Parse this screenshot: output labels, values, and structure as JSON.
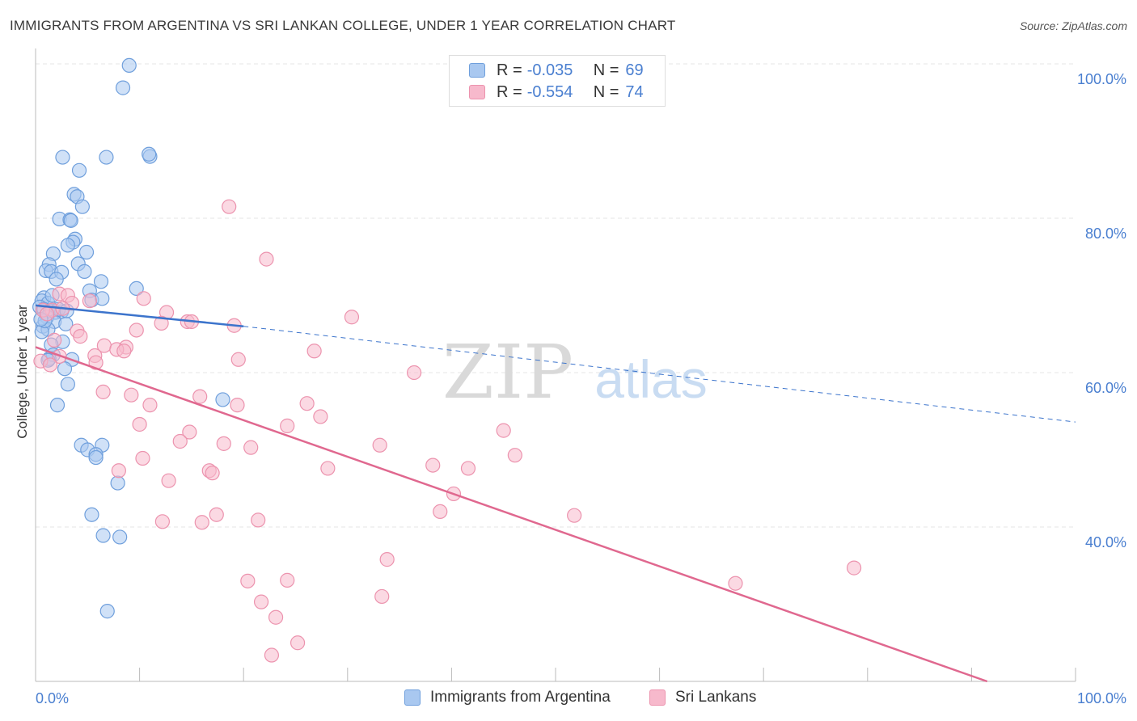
{
  "title": "IMMIGRANTS FROM ARGENTINA VS SRI LANKAN COLLEGE, UNDER 1 YEAR CORRELATION CHART",
  "source": "Source: ZipAtlas.com",
  "watermark": {
    "zip": "ZIP",
    "atlas": "atlas"
  },
  "colors": {
    "blue_fill": "#a9c8f0",
    "blue_stroke": "#6f9fdc",
    "blue_line": "#3c74cc",
    "pink_fill": "#f7b9cc",
    "pink_stroke": "#ec93ae",
    "pink_line": "#e0688f",
    "axis_label": "#4a7fd0",
    "grid": "#e6e6e6"
  },
  "legend": {
    "rows": [
      {
        "r_label": "R =",
        "r_value": "-0.035",
        "n_label": "N =",
        "n_value": "69"
      },
      {
        "r_label": "R =",
        "r_value": "-0.554",
        "n_label": "N =",
        "n_value": "74"
      }
    ],
    "bottom": [
      "Immigrants from Argentina",
      "Sri Lankans"
    ]
  },
  "chart_data": {
    "type": "scatter",
    "title": "IMMIGRANTS FROM ARGENTINA VS SRI LANKAN COLLEGE, UNDER 1 YEAR CORRELATION CHART",
    "xlabel": "",
    "ylabel": "College, Under 1 year",
    "xlim": [
      0,
      100
    ],
    "ylim": [
      20,
      102
    ],
    "x_tick_labels": [
      "0.0%",
      "100.0%"
    ],
    "y_ticks": [
      40,
      60,
      80,
      100
    ],
    "y_tick_labels": [
      "40.0%",
      "60.0%",
      "80.0%",
      "100.0%"
    ],
    "series": [
      {
        "name": "Immigrants from Argentina",
        "r": -0.035,
        "n": 69,
        "trend": {
          "x0": 0,
          "y0": 68.7,
          "x_solid_end": 20,
          "y_solid_end": 66.0,
          "x1": 100,
          "y1": 53.6
        },
        "points": [
          [
            9.0,
            99.8
          ],
          [
            8.4,
            96.9
          ],
          [
            2.6,
            87.9
          ],
          [
            6.8,
            87.9
          ],
          [
            11.0,
            88.0
          ],
          [
            10.9,
            88.3
          ],
          [
            4.2,
            86.2
          ],
          [
            3.7,
            83.1
          ],
          [
            4.0,
            82.8
          ],
          [
            4.5,
            81.5
          ],
          [
            2.3,
            79.9
          ],
          [
            3.3,
            79.8
          ],
          [
            3.4,
            79.7
          ],
          [
            3.8,
            77.3
          ],
          [
            3.6,
            76.9
          ],
          [
            3.1,
            76.5
          ],
          [
            1.7,
            75.4
          ],
          [
            4.9,
            75.6
          ],
          [
            4.1,
            74.1
          ],
          [
            1.3,
            74.0
          ],
          [
            1.0,
            73.2
          ],
          [
            1.5,
            73.1
          ],
          [
            2.5,
            73.0
          ],
          [
            4.7,
            73.1
          ],
          [
            2.0,
            72.1
          ],
          [
            6.3,
            71.8
          ],
          [
            9.7,
            70.9
          ],
          [
            5.2,
            70.6
          ],
          [
            0.8,
            69.7
          ],
          [
            0.6,
            69.3
          ],
          [
            1.2,
            69.0
          ],
          [
            5.4,
            69.4
          ],
          [
            6.4,
            69.6
          ],
          [
            0.4,
            68.5
          ],
          [
            0.8,
            68.2
          ],
          [
            1.4,
            68.0
          ],
          [
            1.9,
            67.8
          ],
          [
            2.5,
            67.9
          ],
          [
            1.1,
            67.2
          ],
          [
            1.8,
            66.6
          ],
          [
            2.9,
            66.3
          ],
          [
            0.7,
            66.0
          ],
          [
            1.2,
            65.6
          ],
          [
            0.6,
            65.3
          ],
          [
            2.6,
            64.0
          ],
          [
            1.5,
            63.6
          ],
          [
            1.7,
            62.3
          ],
          [
            1.3,
            61.8
          ],
          [
            3.5,
            61.7
          ],
          [
            1.2,
            61.6
          ],
          [
            2.8,
            60.5
          ],
          [
            3.1,
            58.5
          ],
          [
            2.1,
            55.8
          ],
          [
            18.0,
            56.5
          ],
          [
            4.4,
            50.6
          ],
          [
            6.4,
            50.6
          ],
          [
            5.0,
            50.0
          ],
          [
            5.8,
            49.4
          ],
          [
            5.8,
            49.0
          ],
          [
            7.9,
            45.7
          ],
          [
            5.4,
            41.6
          ],
          [
            6.5,
            38.9
          ],
          [
            8.1,
            38.7
          ],
          [
            6.9,
            29.1
          ],
          [
            2.2,
            68.2
          ],
          [
            0.9,
            66.7
          ],
          [
            1.6,
            70.0
          ],
          [
            3.0,
            68.0
          ],
          [
            0.5,
            66.9
          ]
        ]
      },
      {
        "name": "Sri Lankans",
        "r": -0.554,
        "n": 74,
        "trend": {
          "x0": 0,
          "y0": 63.3,
          "x1": 91.5,
          "y1": 20.0
        },
        "points": [
          [
            18.6,
            81.5
          ],
          [
            22.2,
            74.7
          ],
          [
            2.3,
            70.2
          ],
          [
            3.1,
            70.0
          ],
          [
            5.2,
            69.3
          ],
          [
            10.4,
            69.6
          ],
          [
            3.5,
            69.0
          ],
          [
            1.6,
            68.1
          ],
          [
            12.6,
            67.8
          ],
          [
            14.6,
            66.6
          ],
          [
            15.0,
            66.6
          ],
          [
            12.1,
            66.4
          ],
          [
            19.1,
            66.1
          ],
          [
            30.4,
            67.2
          ],
          [
            4.0,
            65.4
          ],
          [
            9.7,
            65.5
          ],
          [
            4.3,
            64.7
          ],
          [
            1.8,
            64.2
          ],
          [
            6.6,
            63.5
          ],
          [
            8.7,
            63.3
          ],
          [
            7.8,
            63.0
          ],
          [
            8.5,
            62.8
          ],
          [
            26.8,
            62.8
          ],
          [
            5.7,
            62.2
          ],
          [
            2.3,
            62.1
          ],
          [
            0.5,
            61.5
          ],
          [
            5.8,
            61.3
          ],
          [
            19.5,
            61.7
          ],
          [
            36.4,
            60.0
          ],
          [
            6.5,
            57.5
          ],
          [
            9.2,
            57.1
          ],
          [
            15.8,
            56.9
          ],
          [
            26.1,
            56.0
          ],
          [
            11.0,
            55.8
          ],
          [
            19.4,
            55.8
          ],
          [
            27.4,
            54.3
          ],
          [
            10.0,
            53.3
          ],
          [
            24.2,
            53.1
          ],
          [
            45.0,
            52.5
          ],
          [
            14.8,
            52.3
          ],
          [
            13.9,
            51.1
          ],
          [
            18.1,
            50.8
          ],
          [
            20.7,
            50.3
          ],
          [
            33.1,
            50.6
          ],
          [
            46.1,
            49.3
          ],
          [
            10.3,
            48.9
          ],
          [
            38.2,
            48.0
          ],
          [
            41.6,
            47.6
          ],
          [
            28.1,
            47.6
          ],
          [
            8.0,
            47.3
          ],
          [
            16.7,
            47.3
          ],
          [
            17.0,
            47.0
          ],
          [
            12.8,
            46.0
          ],
          [
            40.2,
            44.3
          ],
          [
            38.9,
            42.0
          ],
          [
            51.8,
            41.5
          ],
          [
            17.4,
            41.6
          ],
          [
            21.4,
            40.9
          ],
          [
            12.2,
            40.7
          ],
          [
            16.0,
            40.6
          ],
          [
            33.8,
            35.8
          ],
          [
            78.7,
            34.7
          ],
          [
            20.4,
            33.0
          ],
          [
            24.2,
            33.1
          ],
          [
            67.3,
            32.7
          ],
          [
            33.3,
            31.0
          ],
          [
            21.7,
            30.3
          ],
          [
            23.1,
            28.3
          ],
          [
            25.2,
            25.0
          ],
          [
            22.7,
            23.4
          ],
          [
            0.7,
            68.1
          ],
          [
            1.1,
            67.6
          ],
          [
            2.6,
            68.3
          ],
          [
            1.4,
            61.0
          ]
        ]
      }
    ]
  }
}
